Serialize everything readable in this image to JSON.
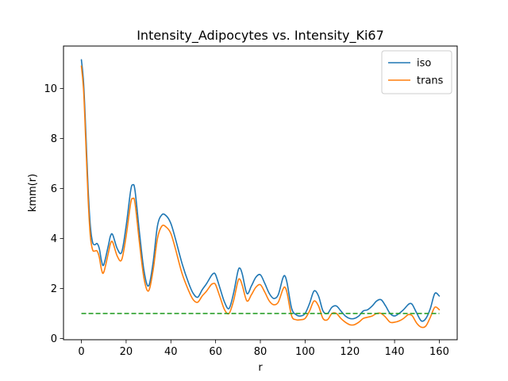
{
  "chart_data": {
    "type": "line",
    "title": "Intensity_Adipocytes vs. Intensity_Ki67",
    "xlabel": "r",
    "ylabel": "kmm(r)",
    "xlim": [
      -8,
      168
    ],
    "ylim": [
      -0.05,
      11.7
    ],
    "xticks": [
      0,
      20,
      40,
      60,
      80,
      100,
      120,
      140,
      160
    ],
    "yticks": [
      0,
      2,
      4,
      6,
      8,
      10
    ],
    "legend_position": "top-right",
    "grid": false,
    "series": [
      {
        "name": "iso",
        "color": "#1f77b4",
        "x": [
          0,
          1,
          2,
          3,
          4,
          5,
          6,
          7,
          8,
          9,
          10,
          12,
          13,
          14,
          16,
          18,
          20,
          22,
          23,
          24,
          26,
          28,
          30,
          32,
          34,
          36,
          38,
          40,
          42,
          45,
          48,
          50,
          52,
          54,
          56,
          58,
          59,
          60,
          62,
          64,
          66,
          68,
          70,
          71,
          72,
          74,
          76,
          78,
          80,
          82,
          84,
          86,
          88,
          90,
          91,
          92,
          94,
          96,
          98,
          100,
          102,
          104,
          106,
          108,
          110,
          112,
          114,
          116,
          118,
          120,
          122,
          124,
          126,
          128,
          130,
          132,
          134,
          136,
          138,
          140,
          142,
          144,
          146,
          147,
          148,
          150,
          152,
          154,
          156,
          158,
          160
        ],
        "y": [
          11.15,
          10.2,
          8.2,
          6.0,
          4.5,
          3.85,
          3.75,
          3.8,
          3.6,
          3.1,
          2.95,
          3.7,
          4.1,
          4.15,
          3.6,
          3.45,
          4.5,
          5.9,
          6.15,
          5.9,
          4.2,
          2.7,
          2.1,
          3.0,
          4.5,
          4.95,
          4.9,
          4.6,
          4.0,
          3.0,
          2.2,
          1.8,
          1.65,
          1.95,
          2.2,
          2.5,
          2.6,
          2.55,
          2.0,
          1.45,
          1.2,
          1.8,
          2.7,
          2.8,
          2.55,
          1.8,
          2.1,
          2.45,
          2.55,
          2.2,
          1.8,
          1.6,
          1.75,
          2.4,
          2.5,
          2.2,
          1.2,
          0.95,
          0.9,
          1.0,
          1.4,
          1.9,
          1.7,
          1.1,
          1.0,
          1.25,
          1.3,
          1.1,
          0.9,
          0.8,
          0.8,
          0.9,
          1.1,
          1.15,
          1.3,
          1.5,
          1.55,
          1.3,
          1.0,
          0.9,
          1.0,
          1.15,
          1.35,
          1.4,
          1.35,
          1.0,
          0.7,
          0.8,
          1.2,
          1.8,
          1.7
        ]
      },
      {
        "name": "trans",
        "color": "#ff7f0e",
        "x": [
          0,
          1,
          2,
          3,
          4,
          5,
          6,
          7,
          8,
          9,
          10,
          12,
          13,
          14,
          16,
          18,
          20,
          22,
          23,
          24,
          26,
          28,
          30,
          32,
          34,
          36,
          38,
          40,
          42,
          45,
          48,
          50,
          52,
          54,
          56,
          58,
          59,
          60,
          62,
          64,
          66,
          68,
          70,
          71,
          72,
          74,
          76,
          78,
          80,
          82,
          84,
          86,
          88,
          90,
          91,
          92,
          94,
          96,
          98,
          100,
          102,
          104,
          106,
          108,
          110,
          112,
          114,
          116,
          118,
          120,
          122,
          124,
          126,
          128,
          130,
          132,
          134,
          136,
          138,
          140,
          142,
          144,
          146,
          147,
          148,
          150,
          152,
          154,
          156,
          158,
          160
        ],
        "y": [
          10.9,
          9.9,
          7.8,
          5.6,
          4.1,
          3.55,
          3.5,
          3.5,
          3.25,
          2.75,
          2.65,
          3.4,
          3.8,
          3.85,
          3.3,
          3.15,
          4.1,
          5.4,
          5.6,
          5.4,
          3.8,
          2.4,
          1.9,
          2.7,
          4.0,
          4.5,
          4.45,
          4.2,
          3.6,
          2.6,
          1.9,
          1.55,
          1.45,
          1.7,
          1.9,
          2.15,
          2.2,
          2.15,
          1.65,
          1.15,
          1.0,
          1.5,
          2.3,
          2.35,
          2.1,
          1.5,
          1.75,
          2.05,
          2.15,
          1.85,
          1.5,
          1.35,
          1.45,
          1.95,
          2.05,
          1.8,
          0.9,
          0.75,
          0.75,
          0.8,
          1.1,
          1.5,
          1.3,
          0.8,
          0.75,
          1.0,
          1.0,
          0.8,
          0.65,
          0.55,
          0.55,
          0.65,
          0.8,
          0.85,
          0.9,
          1.0,
          1.0,
          0.85,
          0.65,
          0.65,
          0.7,
          0.8,
          0.95,
          0.95,
          0.9,
          0.6,
          0.45,
          0.5,
          0.85,
          1.25,
          1.15
        ]
      },
      {
        "name": "",
        "color": "#2ca02c",
        "dashed": true,
        "x": [
          0,
          160
        ],
        "y": [
          1.0,
          1.0
        ]
      }
    ]
  }
}
